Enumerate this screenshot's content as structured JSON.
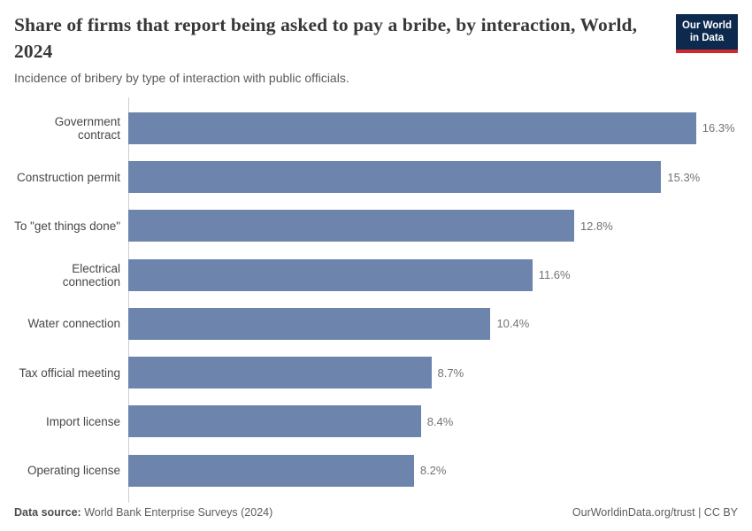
{
  "header": {
    "title": "Share of firms that report being asked to pay a bribe, by interaction, World, 2024",
    "subtitle": "Incidence of bribery by type of interaction with public officials.",
    "logo": {
      "line1": "Our World",
      "line2": "in Data"
    }
  },
  "chart_data": {
    "type": "bar",
    "orientation": "horizontal",
    "title": "Share of firms that report being asked to pay a bribe, by interaction, World, 2024",
    "subtitle": "Incidence of bribery by type of interaction with public officials.",
    "categories": [
      "Government contract",
      "Construction permit",
      "To \"get things done\"",
      "Electrical connection",
      "Water connection",
      "Tax official meeting",
      "Import license",
      "Operating license"
    ],
    "values": [
      16.3,
      15.3,
      12.8,
      11.6,
      10.4,
      8.7,
      8.4,
      8.2
    ],
    "value_labels": [
      "16.3%",
      "15.3%",
      "12.8%",
      "11.6%",
      "10.4%",
      "8.7%",
      "8.4%",
      "8.2%"
    ],
    "unit": "%",
    "xlim": [
      0,
      17.5
    ],
    "grid": false,
    "legend": "none",
    "bar_color": "#6d85ad"
  },
  "colors": {
    "bar": "#6d85ad",
    "axis": "#cfcfcf",
    "logo_navy": "#0d2a4e",
    "logo_red": "#cc2a30",
    "title_text": "#383838",
    "subtitle_text": "#5b5b5b"
  },
  "footer": {
    "datasource_label": "Data source:",
    "datasource_value": " World Bank Enterprise Surveys (2024)",
    "credit": "OurWorldinData.org/trust | CC BY"
  }
}
